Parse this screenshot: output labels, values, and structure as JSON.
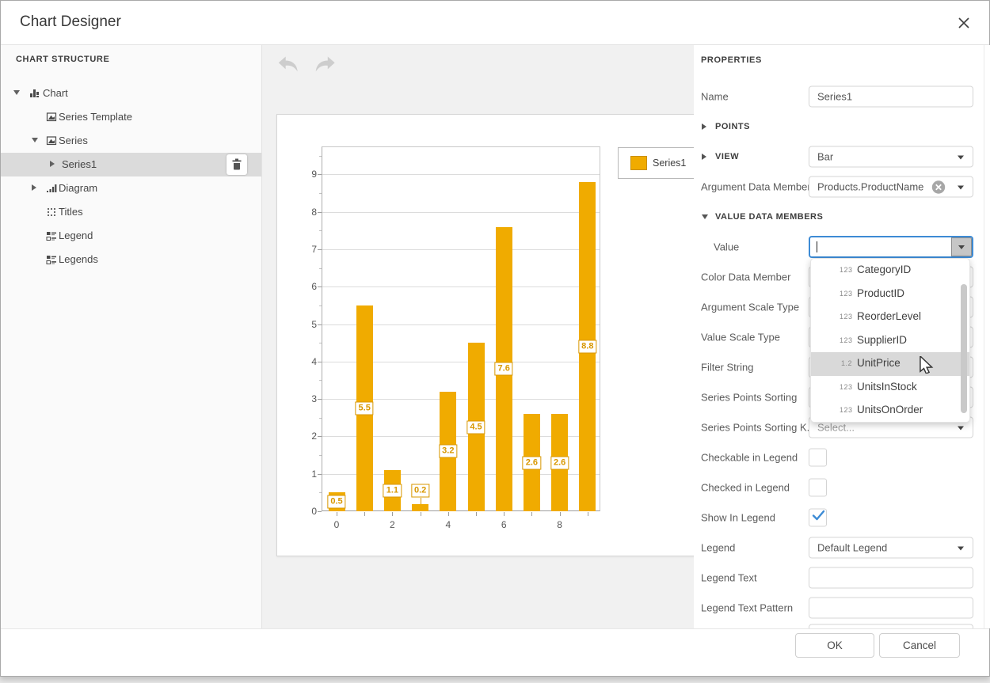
{
  "window": {
    "title": "Chart Designer"
  },
  "sidebar": {
    "header": "CHART STRUCTURE",
    "tree": [
      {
        "label": "Chart",
        "level": 0,
        "expander": "down",
        "icon": "chart",
        "selected": false
      },
      {
        "label": "Series Template",
        "level": 1,
        "expander": "none",
        "icon": "series",
        "selected": false
      },
      {
        "label": "Series",
        "level": 1,
        "expander": "down",
        "icon": "series",
        "selected": false
      },
      {
        "label": "Series1",
        "level": 2,
        "expander": "right",
        "icon": "none",
        "selected": true,
        "action": "delete"
      },
      {
        "label": "Diagram",
        "level": 1,
        "expander": "right",
        "icon": "diagram",
        "selected": false
      },
      {
        "label": "Titles",
        "level": 1,
        "expander": "none",
        "icon": "titles",
        "selected": false
      },
      {
        "label": "Legend",
        "level": 1,
        "expander": "none",
        "icon": "legend",
        "selected": false
      },
      {
        "label": "Legends",
        "level": 1,
        "expander": "none",
        "icon": "legend",
        "selected": false
      }
    ]
  },
  "canvas": {
    "chart_data": {
      "type": "bar",
      "x": [
        0,
        1,
        2,
        3,
        4,
        5,
        6,
        7,
        8,
        9
      ],
      "values": [
        0.5,
        5.5,
        1.1,
        0.2,
        3.2,
        4.5,
        7.6,
        2.6,
        2.6,
        8.8
      ],
      "point_labels": [
        "0.5",
        "5.5",
        "1.1",
        "0.2",
        "3.2",
        "4.5",
        "7.6",
        "2.6",
        "2.6",
        "8.8"
      ],
      "series_name": "Series1",
      "bar_color": "#F0AB00",
      "y_ticks": [
        0,
        1,
        2,
        3,
        4,
        5,
        6,
        7,
        8,
        9
      ],
      "x_tick_labels": [
        0,
        2,
        4,
        6,
        8
      ],
      "ylim": [
        0,
        9.7
      ],
      "grid": true,
      "legend_position": "top-right",
      "title": "",
      "xlabel": "",
      "ylabel": ""
    }
  },
  "properties": {
    "header": "PROPERTIES",
    "rows": [
      {
        "type": "input",
        "name": "name",
        "label": "Name",
        "value": "Series1"
      },
      {
        "type": "section",
        "name": "points-section",
        "label": "POINTS",
        "state": "collapsed"
      },
      {
        "type": "section-combo",
        "name": "view-section",
        "label": "VIEW",
        "state": "collapsed",
        "value": "Bar"
      },
      {
        "type": "combo-clear",
        "name": "argument-data-member",
        "label": "Argument Data Member",
        "value": "Products.ProductName"
      },
      {
        "type": "section",
        "name": "value-data-members-section",
        "label": "VALUE DATA MEMBERS",
        "state": "expanded"
      },
      {
        "type": "combo-open",
        "name": "value",
        "label": "Value",
        "value": "",
        "indent": true
      },
      {
        "type": "combo",
        "name": "color-data-member",
        "label": "Color Data Member",
        "value": ""
      },
      {
        "type": "combo",
        "name": "argument-scale-type",
        "label": "Argument Scale Type",
        "value": ""
      },
      {
        "type": "combo",
        "name": "value-scale-type",
        "label": "Value Scale Type",
        "value": ""
      },
      {
        "type": "input",
        "name": "filter-string",
        "label": "Filter String",
        "value": ""
      },
      {
        "type": "combo",
        "name": "series-points-sorting",
        "label": "Series Points Sorting",
        "value": ""
      },
      {
        "type": "combo",
        "name": "series-points-sorting-key",
        "label": "Series Points Sorting K...",
        "value": "Select...",
        "placeholder": true
      },
      {
        "type": "checkbox",
        "name": "checkable-in-legend",
        "label": "Checkable in Legend",
        "checked": false
      },
      {
        "type": "checkbox",
        "name": "checked-in-legend",
        "label": "Checked in Legend",
        "checked": false
      },
      {
        "type": "checkbox",
        "name": "show-in-legend",
        "label": "Show In Legend",
        "checked": true
      },
      {
        "type": "combo",
        "name": "legend",
        "label": "Legend",
        "value": "Default Legend"
      },
      {
        "type": "input",
        "name": "legend-text",
        "label": "Legend Text",
        "value": ""
      },
      {
        "type": "input",
        "name": "legend-text-pattern",
        "label": "Legend Text Pattern",
        "value": ""
      },
      {
        "type": "input",
        "name": "partial-row",
        "label": "",
        "value": ""
      }
    ],
    "value_dropdown": {
      "items": [
        {
          "icon": "123",
          "label": "CategoryID",
          "highlighted": false
        },
        {
          "icon": "123",
          "label": "ProductID",
          "highlighted": false
        },
        {
          "icon": "123",
          "label": "ReorderLevel",
          "highlighted": false
        },
        {
          "icon": "123",
          "label": "SupplierID",
          "highlighted": false
        },
        {
          "icon": "1.2",
          "label": "UnitPrice",
          "highlighted": true
        },
        {
          "icon": "123",
          "label": "UnitsInStock",
          "highlighted": false
        },
        {
          "icon": "123",
          "label": "UnitsOnOrder",
          "highlighted": false
        }
      ]
    }
  },
  "footer": {
    "ok_label": "OK",
    "cancel_label": "Cancel"
  },
  "colors": {
    "accent_orange": "#F0AB00",
    "focus_blue": "#3D8BD5",
    "selection_gray": "#DBDBDB"
  }
}
